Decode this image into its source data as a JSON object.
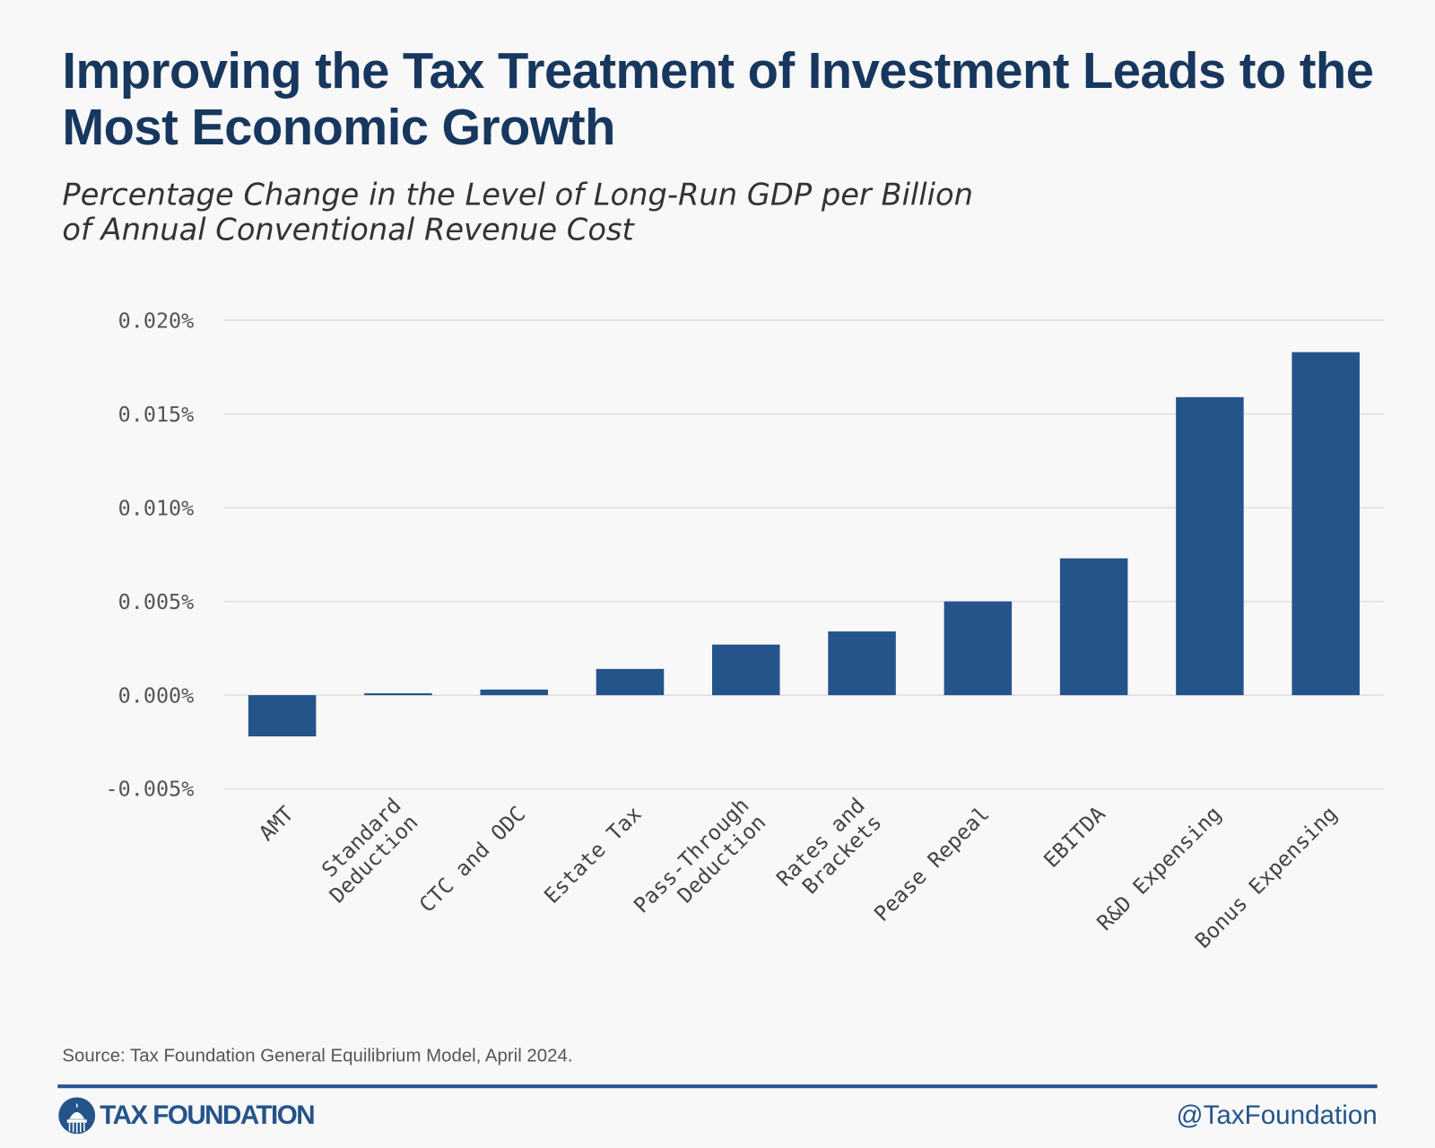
{
  "title": "Improving the Tax Treatment of Investment Leads to the Most Economic Growth",
  "subtitle_line1": "Percentage Change in the Level of Long-Run GDP per Billion",
  "subtitle_line2": "of Annual Conventional Revenue Cost",
  "source": "Source: Tax Foundation General Equilibrium Model, April 2024.",
  "logo_text": "TAX FOUNDATION",
  "handle": "@TaxFoundation",
  "colors": {
    "bar": "#24548a",
    "title": "#17375e",
    "grid": "#dddddd"
  },
  "chart_data": {
    "type": "bar",
    "title": "Improving the Tax Treatment of Investment Leads to the Most Economic Growth",
    "subtitle": "Percentage Change in the Level of Long-Run GDP per Billion of Annual Conventional Revenue Cost",
    "categories": [
      [
        "AMT"
      ],
      [
        "Standard",
        "Deduction"
      ],
      [
        "CTC and ODC"
      ],
      [
        "Estate Tax"
      ],
      [
        "Pass-Through",
        "Deduction"
      ],
      [
        "Rates and",
        "Brackets"
      ],
      [
        "Pease Repeal"
      ],
      [
        "EBITDA"
      ],
      [
        "R&D Expensing"
      ],
      [
        "Bonus Expensing"
      ]
    ],
    "values": [
      -0.0022,
      0.0001,
      0.0003,
      0.0014,
      0.0027,
      0.0034,
      0.005,
      0.0073,
      0.0159,
      0.0183
    ],
    "ylim": [
      -0.005,
      0.02
    ],
    "yticks": [
      -0.005,
      0.0,
      0.005,
      0.01,
      0.015,
      0.02
    ],
    "ytick_labels": [
      "-0.005%",
      "0.000%",
      "0.005%",
      "0.010%",
      "0.015%",
      "0.020%"
    ],
    "grid": true,
    "xlabel": "",
    "ylabel": ""
  }
}
